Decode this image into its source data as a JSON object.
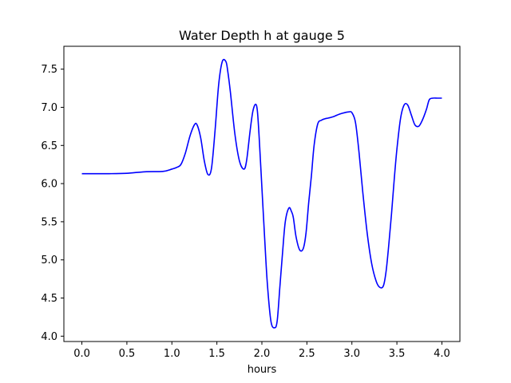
{
  "chart_data": {
    "type": "line",
    "title": "Water Depth h at gauge 5",
    "xlabel": "hours",
    "ylabel": "",
    "xlim": [
      -0.2,
      4.2
    ],
    "ylim": [
      3.93,
      7.8
    ],
    "xticks": [
      0.0,
      0.5,
      1.0,
      1.5,
      2.0,
      2.5,
      3.0,
      3.5,
      4.0
    ],
    "xtick_labels": [
      "0.0",
      "0.5",
      "1.0",
      "1.5",
      "2.0",
      "2.5",
      "3.0",
      "3.5",
      "4.0"
    ],
    "yticks": [
      4.0,
      4.5,
      5.0,
      5.5,
      6.0,
      6.5,
      7.0,
      7.5
    ],
    "ytick_labels": [
      "4.0",
      "4.5",
      "5.0",
      "5.5",
      "6.0",
      "6.5",
      "7.0",
      "7.5"
    ],
    "grid": false,
    "series": [
      {
        "color": "#0000ff",
        "x": [
          0.0,
          0.3,
          0.5,
          0.7,
          0.9,
          1.0,
          1.05,
          1.1,
          1.15,
          1.2,
          1.25,
          1.28,
          1.32,
          1.36,
          1.4,
          1.44,
          1.48,
          1.52,
          1.56,
          1.6,
          1.62,
          1.65,
          1.7,
          1.75,
          1.8,
          1.83,
          1.87,
          1.9,
          1.93,
          1.95,
          1.97,
          2.0,
          2.03,
          2.06,
          2.1,
          2.14,
          2.17,
          2.2,
          2.23,
          2.26,
          2.3,
          2.33,
          2.35,
          2.38,
          2.42,
          2.46,
          2.49,
          2.52,
          2.55,
          2.58,
          2.62,
          2.66,
          2.7,
          2.74,
          2.8,
          2.86,
          2.92,
          2.97,
          3.0,
          3.04,
          3.08,
          3.12,
          3.17,
          3.22,
          3.27,
          3.31,
          3.35,
          3.38,
          3.41,
          3.44,
          3.47,
          3.5,
          3.54,
          3.58,
          3.62,
          3.66,
          3.7,
          3.74,
          3.77,
          3.8,
          3.83,
          3.86,
          3.9,
          3.95,
          4.0
        ],
        "y": [
          6.13,
          6.13,
          6.135,
          6.155,
          6.16,
          6.19,
          6.21,
          6.25,
          6.4,
          6.62,
          6.77,
          6.77,
          6.6,
          6.3,
          6.12,
          6.2,
          6.7,
          7.3,
          7.6,
          7.6,
          7.48,
          7.2,
          6.65,
          6.3,
          6.19,
          6.3,
          6.7,
          6.95,
          7.04,
          6.95,
          6.6,
          5.95,
          5.3,
          4.7,
          4.2,
          4.11,
          4.2,
          4.65,
          5.1,
          5.5,
          5.68,
          5.63,
          5.55,
          5.3,
          5.13,
          5.15,
          5.35,
          5.75,
          6.1,
          6.5,
          6.78,
          6.83,
          6.85,
          6.86,
          6.88,
          6.91,
          6.93,
          6.94,
          6.93,
          6.8,
          6.4,
          5.9,
          5.35,
          4.95,
          4.72,
          4.64,
          4.66,
          4.85,
          5.2,
          5.6,
          6.05,
          6.45,
          6.85,
          7.03,
          7.03,
          6.9,
          6.77,
          6.75,
          6.8,
          6.88,
          6.98,
          7.1,
          7.12,
          7.12,
          7.12
        ]
      }
    ]
  }
}
